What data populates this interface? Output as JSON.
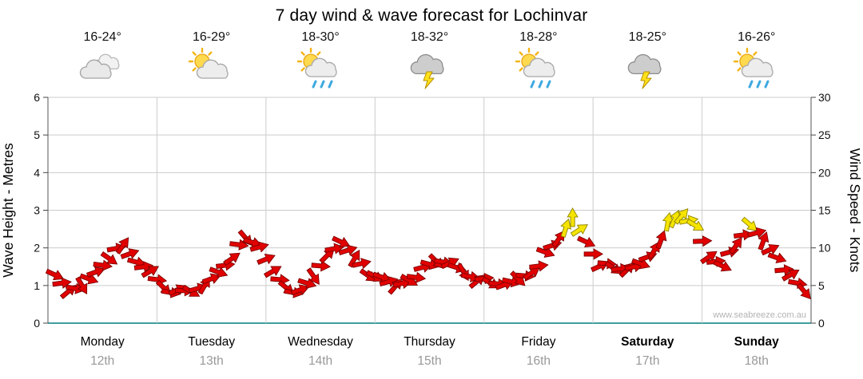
{
  "title": "7 day wind & wave forecast for Lochinvar",
  "watermark": "www.seabreeze.com.au",
  "axes": {
    "left_label": "Wave Height - Metres",
    "right_label": "Wind Speed - Knots",
    "wave_ticks": [
      0,
      1,
      2,
      3,
      4,
      5,
      6
    ],
    "wind_ticks": [
      0,
      5,
      10,
      15,
      20,
      25,
      30
    ]
  },
  "days": [
    {
      "name": "Monday",
      "date": "12th",
      "temp": "16-24°",
      "icon": "cloudy",
      "bold": false
    },
    {
      "name": "Tuesday",
      "date": "13th",
      "temp": "16-29°",
      "icon": "partly-cloudy",
      "bold": false
    },
    {
      "name": "Wednesday",
      "date": "14th",
      "temp": "18-30°",
      "icon": "sun-showers",
      "bold": false
    },
    {
      "name": "Thursday",
      "date": "15th",
      "temp": "18-32°",
      "icon": "storm",
      "bold": false
    },
    {
      "name": "Friday",
      "date": "16th",
      "temp": "18-28°",
      "icon": "sun-showers",
      "bold": false
    },
    {
      "name": "Saturday",
      "date": "17th",
      "temp": "18-25°",
      "icon": "storm",
      "bold": true
    },
    {
      "name": "Sunday",
      "date": "18th",
      "temp": "16-26°",
      "icon": "sun-showers",
      "bold": true
    }
  ],
  "chart_data": {
    "type": "scatter",
    "marker": "wind-arrow",
    "title": "7 day wind & wave forecast for Lochinvar",
    "ylabel_left": "Wave Height - Metres",
    "ylabel_right": "Wind Speed - Knots",
    "wave_axis_m": [
      0,
      6
    ],
    "wind_axis_knots": [
      0,
      30
    ],
    "grid": true,
    "points_per_day": 8,
    "x_days": [
      "Monday 12th",
      "Tuesday 13th",
      "Wednesday 14th",
      "Thursday 15th",
      "Friday 16th",
      "Saturday 17th",
      "Sunday 18th"
    ],
    "wind_speed_knots": [
      6,
      4,
      5,
      7,
      9,
      10,
      8,
      7,
      5,
      4,
      4,
      5,
      7,
      9,
      11,
      10,
      7,
      5,
      4,
      6,
      9,
      11,
      9,
      6,
      6,
      5,
      6,
      7,
      8,
      8,
      7,
      6,
      5,
      5,
      6,
      7,
      9,
      11,
      14,
      11,
      8,
      7,
      7,
      8,
      10,
      13,
      14,
      13,
      9,
      8,
      10,
      13,
      11,
      9,
      6,
      4
    ],
    "wind_dir_deg": [
      25,
      -40,
      60,
      -20,
      35,
      -55,
      15,
      -30,
      45,
      -25,
      30,
      -60,
      20,
      -35,
      50,
      -15,
      -30,
      40,
      -20,
      55,
      -45,
      25,
      -60,
      35,
      20,
      -50,
      30,
      -15,
      45,
      -25,
      60,
      -40,
      30,
      -20,
      45,
      -35,
      20,
      -55,
      -90,
      25,
      -25,
      35,
      -45,
      20,
      -60,
      -80,
      -50,
      30,
      -35,
      25,
      -55,
      40,
      -70,
      20,
      -30,
      50
    ],
    "gust_threshold_knots": 12.5,
    "colors": {
      "arrow": "#E10000",
      "arrow_outline": "#7D0000",
      "arrow_strong": "#F5E400",
      "arrow_strong_outline": "#8F8400",
      "grid": "#cccccc",
      "baseline": "#007F7F",
      "axis": "#555555",
      "date_text": "#999999",
      "watermark": "#b3b3b3"
    }
  }
}
